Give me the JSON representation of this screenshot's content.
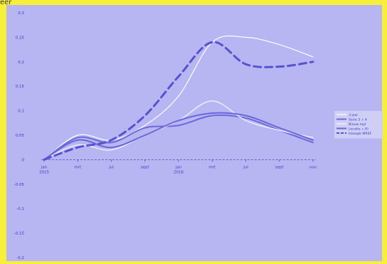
{
  "window": {
    "corner_label": "eer"
  },
  "colors": {
    "frame": "#f7ef3a",
    "plot_background": "#b7b6f2",
    "legend_background": "#cfcff6",
    "axis_text": "#3b38c8",
    "zero_line": "#4d4ad0"
  },
  "chart_data": {
    "type": "line",
    "title": "",
    "xlabel": "",
    "ylabel": "",
    "ylim": [
      -0.2,
      0.3
    ],
    "y_ticks": [
      "0.3",
      "0.25",
      "0.2",
      "0.15",
      "0.1",
      "0.05",
      "0",
      "-0.05",
      "-0.1",
      "-0.15",
      "-0.2"
    ],
    "y_tick_values": [
      0.3,
      0.25,
      0.2,
      0.15,
      0.1,
      0.05,
      0,
      -0.05,
      -0.1,
      -0.15,
      -0.2
    ],
    "categories": [
      "jan\n2015",
      "mrt",
      "jul",
      "sept",
      "jan\n2016",
      "mrt",
      "jul",
      "sept",
      "nov"
    ],
    "grid": false,
    "legend_position": "right",
    "series": [
      {
        "name": "3 jaar",
        "color": "#ffffff",
        "dash": "none",
        "width": 1.2,
        "values": [
          0.0,
          0.05,
          0.04,
          0.07,
          0.13,
          0.24,
          0.25,
          0.235,
          0.21
        ]
      },
      {
        "name": "Serie 3 + 4",
        "color": "#6d69dc",
        "dash": "none",
        "width": 2,
        "values": [
          0.0,
          0.045,
          0.035,
          0.065,
          0.07,
          0.09,
          0.085,
          0.06,
          0.035
        ]
      },
      {
        "name": "Nieuw mpl",
        "color": "#eeeefc",
        "dash": "none",
        "width": 1.5,
        "values": [
          0.0,
          0.03,
          0.02,
          0.05,
          0.08,
          0.12,
          0.08,
          0.06,
          0.045
        ]
      },
      {
        "name": "Locatie + KI",
        "color": "#6a67da",
        "dash": "none",
        "width": 2,
        "values": [
          0.0,
          0.04,
          0.025,
          0.05,
          0.08,
          0.095,
          0.09,
          0.065,
          0.04
        ]
      },
      {
        "name": "Inkoopk MRSF",
        "color": "#5653d1",
        "dash": "10,6",
        "width": 3,
        "values": [
          0.0,
          0.025,
          0.04,
          0.09,
          0.17,
          0.24,
          0.195,
          0.19,
          0.2
        ]
      }
    ]
  }
}
